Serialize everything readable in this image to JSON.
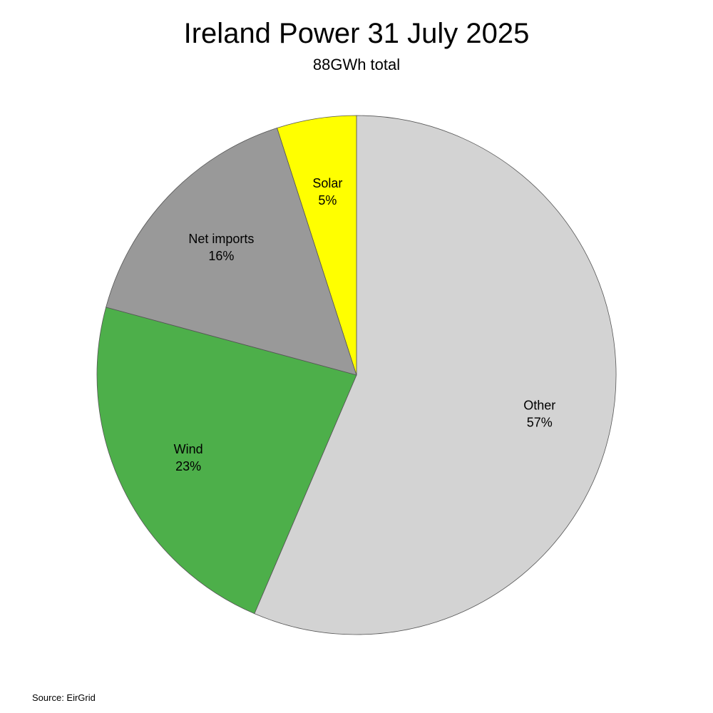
{
  "chart_data": {
    "type": "pie",
    "title": "Ireland Power 31 July 2025",
    "subtitle": "88GWh total",
    "source": "Source: EirGrid",
    "start": "top",
    "direction": "clockwise",
    "slices": [
      {
        "label": "Other",
        "value": 57,
        "value_label": "57%",
        "color": "#d3d3d3"
      },
      {
        "label": "Wind",
        "value": 23,
        "value_label": "23%",
        "color": "#4daf4a"
      },
      {
        "label": "Net imports",
        "value": 16,
        "value_label": "16%",
        "color": "#999999"
      },
      {
        "label": "Solar",
        "value": 5,
        "value_label": "5%",
        "color": "#ffff00"
      }
    ]
  }
}
